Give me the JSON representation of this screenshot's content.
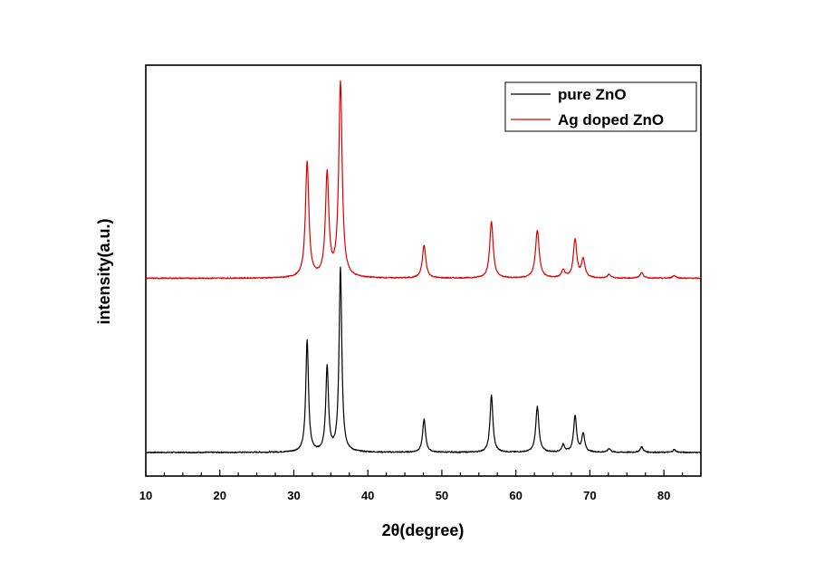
{
  "chart_data": {
    "type": "line",
    "title": "",
    "xlabel": "2θ(degree)",
    "ylabel": "intensity(a.u.)",
    "xlim": [
      10,
      85
    ],
    "xticks": [
      10,
      20,
      30,
      40,
      50,
      60,
      70,
      80
    ],
    "yticks": [],
    "grid": false,
    "legend_position": "top-right",
    "series": [
      {
        "name": "pure ZnO",
        "color": "#000000",
        "baseline": 0.05,
        "peaks": [
          {
            "x": 31.8,
            "height": 0.61,
            "width": 0.28
          },
          {
            "x": 34.5,
            "height": 0.46,
            "width": 0.28
          },
          {
            "x": 36.3,
            "height": 1.0,
            "width": 0.28
          },
          {
            "x": 47.6,
            "height": 0.18,
            "width": 0.3
          },
          {
            "x": 56.7,
            "height": 0.31,
            "width": 0.3
          },
          {
            "x": 62.9,
            "height": 0.25,
            "width": 0.32
          },
          {
            "x": 66.4,
            "height": 0.04,
            "width": 0.3
          },
          {
            "x": 68.0,
            "height": 0.2,
            "width": 0.3
          },
          {
            "x": 69.1,
            "height": 0.1,
            "width": 0.3
          },
          {
            "x": 72.6,
            "height": 0.02,
            "width": 0.3
          },
          {
            "x": 77.0,
            "height": 0.03,
            "width": 0.3
          },
          {
            "x": 81.4,
            "height": 0.015,
            "width": 0.3
          }
        ]
      },
      {
        "name": "Ag doped ZnO",
        "color": "#e00000",
        "baseline": 1.0,
        "peaks": [
          {
            "x": 31.8,
            "height": 0.63,
            "width": 0.35
          },
          {
            "x": 34.5,
            "height": 0.56,
            "width": 0.35
          },
          {
            "x": 36.3,
            "height": 1.06,
            "width": 0.35
          },
          {
            "x": 47.6,
            "height": 0.18,
            "width": 0.35
          },
          {
            "x": 56.7,
            "height": 0.31,
            "width": 0.35
          },
          {
            "x": 62.9,
            "height": 0.26,
            "width": 0.38
          },
          {
            "x": 66.4,
            "height": 0.04,
            "width": 0.35
          },
          {
            "x": 68.0,
            "height": 0.21,
            "width": 0.35
          },
          {
            "x": 69.1,
            "height": 0.1,
            "width": 0.35
          },
          {
            "x": 72.6,
            "height": 0.02,
            "width": 0.35
          },
          {
            "x": 77.0,
            "height": 0.03,
            "width": 0.35
          },
          {
            "x": 81.4,
            "height": 0.015,
            "width": 0.35
          }
        ]
      }
    ]
  }
}
